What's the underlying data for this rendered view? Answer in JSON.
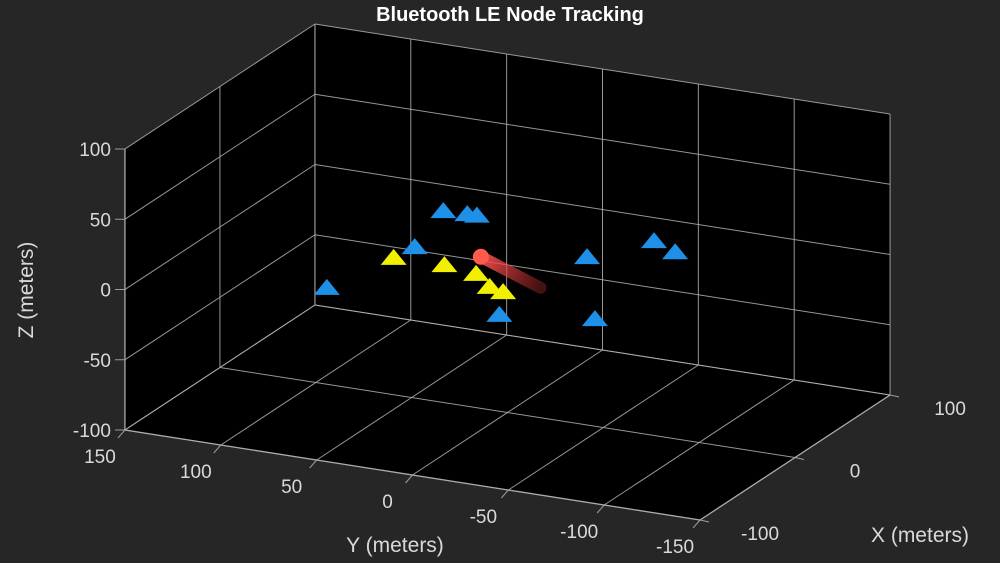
{
  "chart_data": {
    "type": "scatter3d",
    "title": "Bluetooth LE Node Tracking",
    "xlabel": "X (meters)",
    "ylabel": "Y (meters)",
    "zlabel": "Z (meters)",
    "xlim": [
      -100,
      100
    ],
    "ylim": [
      -150,
      150
    ],
    "zlim": [
      -100,
      100
    ],
    "xticks": [
      -100,
      0,
      100
    ],
    "yticks": [
      150,
      100,
      50,
      0,
      -50,
      -100,
      -150
    ],
    "zticks": [
      -100,
      -50,
      0,
      50,
      100
    ],
    "grid": true,
    "colors": {
      "figure_bg": "#262626",
      "axes_bg": "#000000",
      "grid": "#b0b0b0",
      "series_blue": "#1e90e8",
      "series_yellow": "#f0f000",
      "track": "#e05050"
    },
    "series": [
      {
        "marker": "triangle",
        "color": "#1e90e8",
        "points": [
          [
            -57,
            66,
            0
          ],
          [
            -7,
            30,
            40
          ],
          [
            -6,
            18,
            40
          ],
          [
            -6,
            13,
            40
          ],
          [
            -23,
            37,
            20
          ],
          [
            -1,
            -42,
            20
          ],
          [
            15,
            -69,
            30
          ],
          [
            5,
            -85,
            30
          ],
          [
            -57,
            -24,
            0
          ],
          [
            -25,
            -58,
            -10
          ]
        ]
      },
      {
        "marker": "triangle",
        "color": "#f0f000",
        "points": [
          [
            -23,
            48,
            10
          ],
          [
            -22,
            22,
            10
          ],
          [
            -27,
            3,
            10
          ],
          [
            -41,
            -11,
            10
          ],
          [
            -45,
            -20,
            10
          ]
        ]
      },
      {
        "marker": "track",
        "color": "#e05050",
        "points": [
          [
            -22,
            3,
            20
          ],
          [
            -50,
            -42,
            20
          ]
        ]
      }
    ]
  }
}
